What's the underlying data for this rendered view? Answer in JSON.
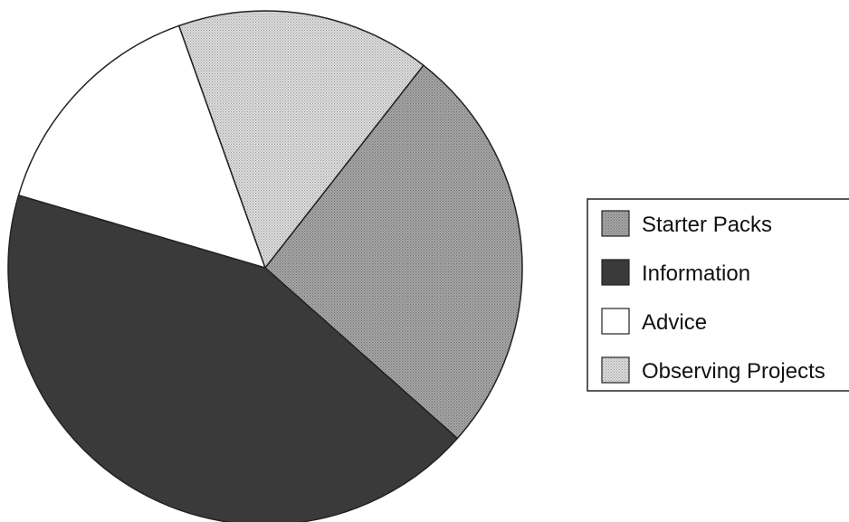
{
  "chart_data": {
    "type": "pie",
    "title": "",
    "legend_position": "right",
    "slices": [
      {
        "label": "Starter Packs",
        "value": 26,
        "color": "#9c9c9c"
      },
      {
        "label": "Information",
        "value": 43,
        "color": "#3a3a3a"
      },
      {
        "label": "Advice",
        "value": 15,
        "color": "#ffffff"
      },
      {
        "label": "Observing Projects",
        "value": 16,
        "color": "#d4d4d4"
      }
    ]
  }
}
